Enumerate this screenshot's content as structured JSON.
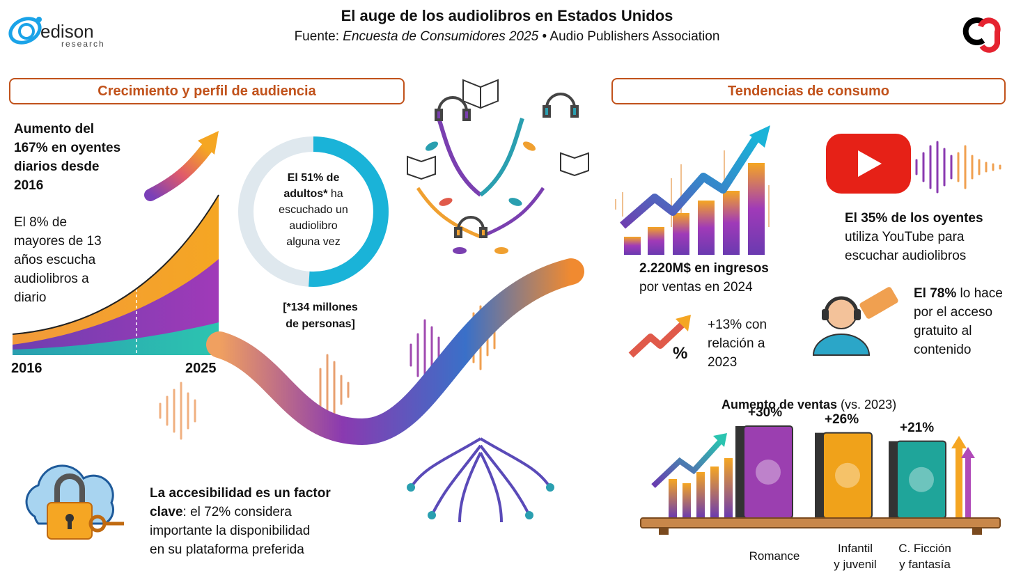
{
  "header": {
    "title": "El auge de los audiolibros en Estados Unidos",
    "source_prefix": "Fuente: ",
    "source_italic": "Encuesta de Consumidores 2025",
    "source_suffix": " • Audio Publishers Association"
  },
  "logo": {
    "name": "edison",
    "sub": "research",
    "accent": "#1aa3e8",
    "right_logo_colors": [
      "#000000",
      "#e52330"
    ]
  },
  "sections": {
    "left_title": "Crecimiento y perfil de audiencia",
    "right_title": "Tendencias de consumo"
  },
  "growth": {
    "headline": [
      "Aumento del",
      "167% en oyentes",
      "diarios desde",
      "2016"
    ],
    "body": [
      "El 8% de",
      "mayores de 13",
      "años escucha",
      "audiolibros a",
      "diario"
    ],
    "year_start": "2016",
    "year_end": "2025"
  },
  "donut": {
    "value": 51,
    "line1": "El 51% de",
    "line2_bold": "adultos*",
    "line2_rest": " ha",
    "line3": "escuchado un",
    "line4": "audiolibro",
    "line5": "alguna vez",
    "note1": "[*134 millones",
    "note2": "de personas]",
    "color_fill": "#1ab3d8",
    "color_rest": "#dfe8ee"
  },
  "accessibility": {
    "bold": "La accesibilidad es un factor",
    "bold2": "clave",
    "rest2": ": el 72% considera",
    "line3": "importante la disponibilidad",
    "line4": "en su plataforma preferida"
  },
  "revenue": {
    "bold": "2.220M$ en ingresos",
    "rest": "por ventas en 2024",
    "growth1": "+13% con",
    "growth2": "relación a",
    "growth3": "2023",
    "percent_symbol": "%"
  },
  "youtube": {
    "bold": "El 35% de los oyentes",
    "line2": "utiliza YouTube para",
    "line3": "escuchar audiolibros",
    "color": "#e62117"
  },
  "free_access": {
    "bold": "El 78%",
    "rest": " lo hace",
    "line2": "por el acceso",
    "line3": "gratuito al",
    "line4": "contenido"
  },
  "sales": {
    "title_bold": "Aumento de ventas",
    "title_rest": " (vs. 2023)",
    "genres": [
      {
        "label": "+30%",
        "name1": "Romance",
        "name2": "",
        "value": 30,
        "color": "#9b3fb0"
      },
      {
        "label": "+26%",
        "name1": "Infantil",
        "name2": "y juvenil",
        "value": 26,
        "color": "#f0a21a"
      },
      {
        "label": "+21%",
        "name1": "C. Ficción",
        "name2": "y fantasía",
        "value": 21,
        "color": "#1fa59a"
      }
    ]
  }
}
